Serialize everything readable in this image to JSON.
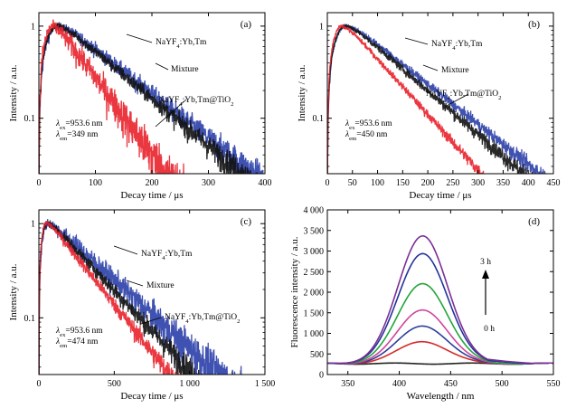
{
  "chart_data": [
    {
      "id": "a",
      "type": "line",
      "panel_label": "(a)",
      "xlabel": "Decay time / μs",
      "ylabel": "Intensity / a.u.",
      "xlim": [
        0,
        400
      ],
      "ylim": [
        0.025,
        1.4
      ],
      "y_scale": "log",
      "x_ticks": [
        "0",
        "100",
        "200",
        "300",
        "400"
      ],
      "y_ticks": [
        "0.1",
        "1"
      ],
      "excitation": "λex=953.6 nm",
      "emission": "λem=349 nm",
      "series": [
        {
          "name": "NaYF4:Yb,Tm",
          "color": "#2b3fa8",
          "rise": 58,
          "tau": 90,
          "noise": 0.1
        },
        {
          "name": "Mixture",
          "color": "#111111",
          "rise": 55,
          "tau": 85,
          "noise": 0.08
        },
        {
          "name": "NaYF4:Yb,Tm@TiO2",
          "color": "#e8212b",
          "rise": 45,
          "tau": 52,
          "noise": 0.16
        }
      ],
      "annotations": [
        "NaYF4:Yb,Tm",
        "Mixture",
        "NaYF4:Yb,Tm@TiO2"
      ]
    },
    {
      "id": "b",
      "type": "line",
      "panel_label": "(b)",
      "xlabel": "Decay time / μs",
      "ylabel": "Intensity / a.u.",
      "xlim": [
        0,
        450
      ],
      "ylim": [
        0.025,
        1.4
      ],
      "y_scale": "log",
      "x_ticks": [
        "0",
        "50",
        "100",
        "150",
        "200",
        "250",
        "300",
        "350",
        "400",
        "450"
      ],
      "y_ticks": [
        "0.1",
        "1"
      ],
      "excitation": "λex=953.6 nm",
      "emission": "λem=450 nm",
      "series": [
        {
          "name": "NaYF4:Yb,Tm",
          "color": "#2b3fa8",
          "rise": 65,
          "tau": 100,
          "noise": 0.05
        },
        {
          "name": "Mixture",
          "color": "#111111",
          "rise": 62,
          "tau": 92,
          "noise": 0.05
        },
        {
          "name": "NaYF4:Yb,Tm@TiO2",
          "color": "#e8212b",
          "rise": 50,
          "tau": 72,
          "noise": 0.04
        }
      ],
      "annotations": [
        "NaYF4:Yb,Tm",
        "Mixture",
        "NaYF4:Yb,Tm@TiO2"
      ]
    },
    {
      "id": "c",
      "type": "line",
      "panel_label": "(c)",
      "xlabel": "Decay time / μs",
      "ylabel": "Intensity / a.u.",
      "xlim": [
        0,
        1500
      ],
      "ylim": [
        0.025,
        1.4
      ],
      "y_scale": "log",
      "x_ticks": [
        "0",
        "500",
        "1 000",
        "1 500"
      ],
      "y_ticks": [
        "0.1",
        "1"
      ],
      "excitation": "λex=953.6 nm",
      "emission": "λem=474 nm",
      "series": [
        {
          "name": "NaYF4:Yb,Tm",
          "color": "#2b3fa8",
          "rise": 80,
          "tau": 300,
          "noise": 0.14
        },
        {
          "name": "Mixture",
          "color": "#111111",
          "rise": 80,
          "tau": 255,
          "noise": 0.08
        },
        {
          "name": "NaYF4:Yb,Tm@TiO2",
          "color": "#e8212b",
          "rise": 75,
          "tau": 215,
          "noise": 0.07
        }
      ],
      "annotations": [
        "NaYF4:Yb,Tm",
        "Mixture",
        "NaYF4:Yb,Tm@TiO2"
      ]
    },
    {
      "id": "d",
      "type": "line",
      "panel_label": "(d)",
      "xlabel": "Wavelength / nm",
      "ylabel": "Fluorescence intensity / a.u.",
      "xlim": [
        330,
        550
      ],
      "ylim": [
        0,
        4000
      ],
      "y_scale": "linear",
      "x_ticks": [
        "350",
        "400",
        "450",
        "500",
        "550"
      ],
      "x_tick_values": [
        350,
        400,
        450,
        500,
        550
      ],
      "y_ticks": [
        "0",
        "500",
        "1 000",
        "1 500",
        "2 000",
        "2 500",
        "3 000",
        "3 500",
        "4 000"
      ],
      "y_tick_values": [
        0,
        500,
        1000,
        1500,
        2000,
        2500,
        3000,
        3500,
        4000
      ],
      "arrow_top_label": "3 h",
      "arrow_bottom_label": "0 h",
      "baseline": 280,
      "peak_x": 423,
      "series": [
        {
          "color": "#222222",
          "peak": 280
        },
        {
          "color": "#d52a2a",
          "peak": 820
        },
        {
          "color": "#2c3f9a",
          "peak": 1200
        },
        {
          "color": "#d0469c",
          "peak": 1590
        },
        {
          "color": "#25a43b",
          "peak": 2230
        },
        {
          "color": "#24349a",
          "peak": 2960
        },
        {
          "color": "#7b2f96",
          "peak": 3390
        }
      ]
    }
  ]
}
